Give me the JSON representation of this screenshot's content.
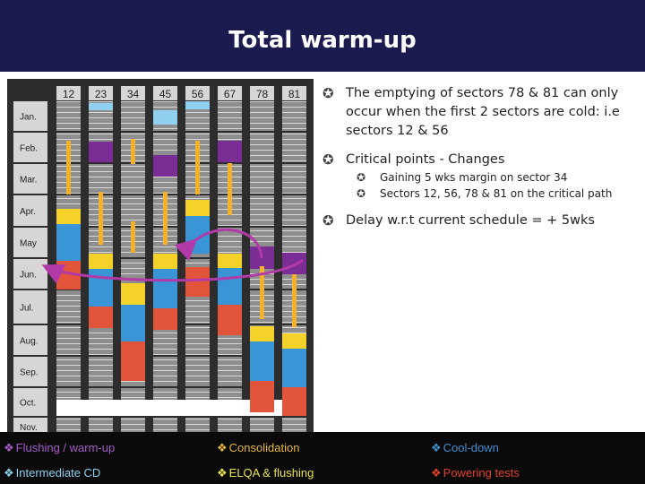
{
  "header": {
    "title": "Total warm-up"
  },
  "colors": {
    "header_bg": "#1b1b4f",
    "flushing": "#7b2d96",
    "consolidation": "#f4d22a",
    "cooldown": "#3a95d6",
    "intermediate_cd": "#8fd0ee",
    "elqa": "#f6b12a",
    "powering": "#e3553b",
    "arrow": "#b23aa8"
  },
  "sectors": [
    "12",
    "23",
    "34",
    "45",
    "56",
    "67",
    "78",
    "81"
  ],
  "months": [
    "Jan.",
    "Feb.",
    "Mar.",
    "Apr.",
    "May",
    "Jun.",
    "Jul.",
    "Aug.",
    "Sep.",
    "Oct.",
    "Nov."
  ],
  "text": {
    "bullets": [
      {
        "text": "The emptying of sectors 78 & 81 can only occur when the first 2 sectors are cold: i.e sectors 12 & 56"
      },
      {
        "text": "Critical points - Changes",
        "subs": [
          "Gaining 5 wks margin on sector 34",
          "Sectors 12, 56, 78 & 81 on the critical path"
        ]
      },
      {
        "text": "Delay w.r.t current schedule = + 5wks"
      }
    ]
  },
  "legend": [
    {
      "label": "Flushing / warm-up",
      "color": "#a55cc8"
    },
    {
      "label": "Consolidation",
      "color": "#e7b73a"
    },
    {
      "label": "Cool-down",
      "color": "#3f8fd4"
    },
    {
      "label": "Intermediate CD",
      "color": "#8fd0ee"
    },
    {
      "label": "ELQA & flushing",
      "color": "#e9e24b"
    },
    {
      "label": "Powering tests",
      "color": "#e3402b"
    }
  ],
  "marker": "❖",
  "bullet_marker": "✪"
}
